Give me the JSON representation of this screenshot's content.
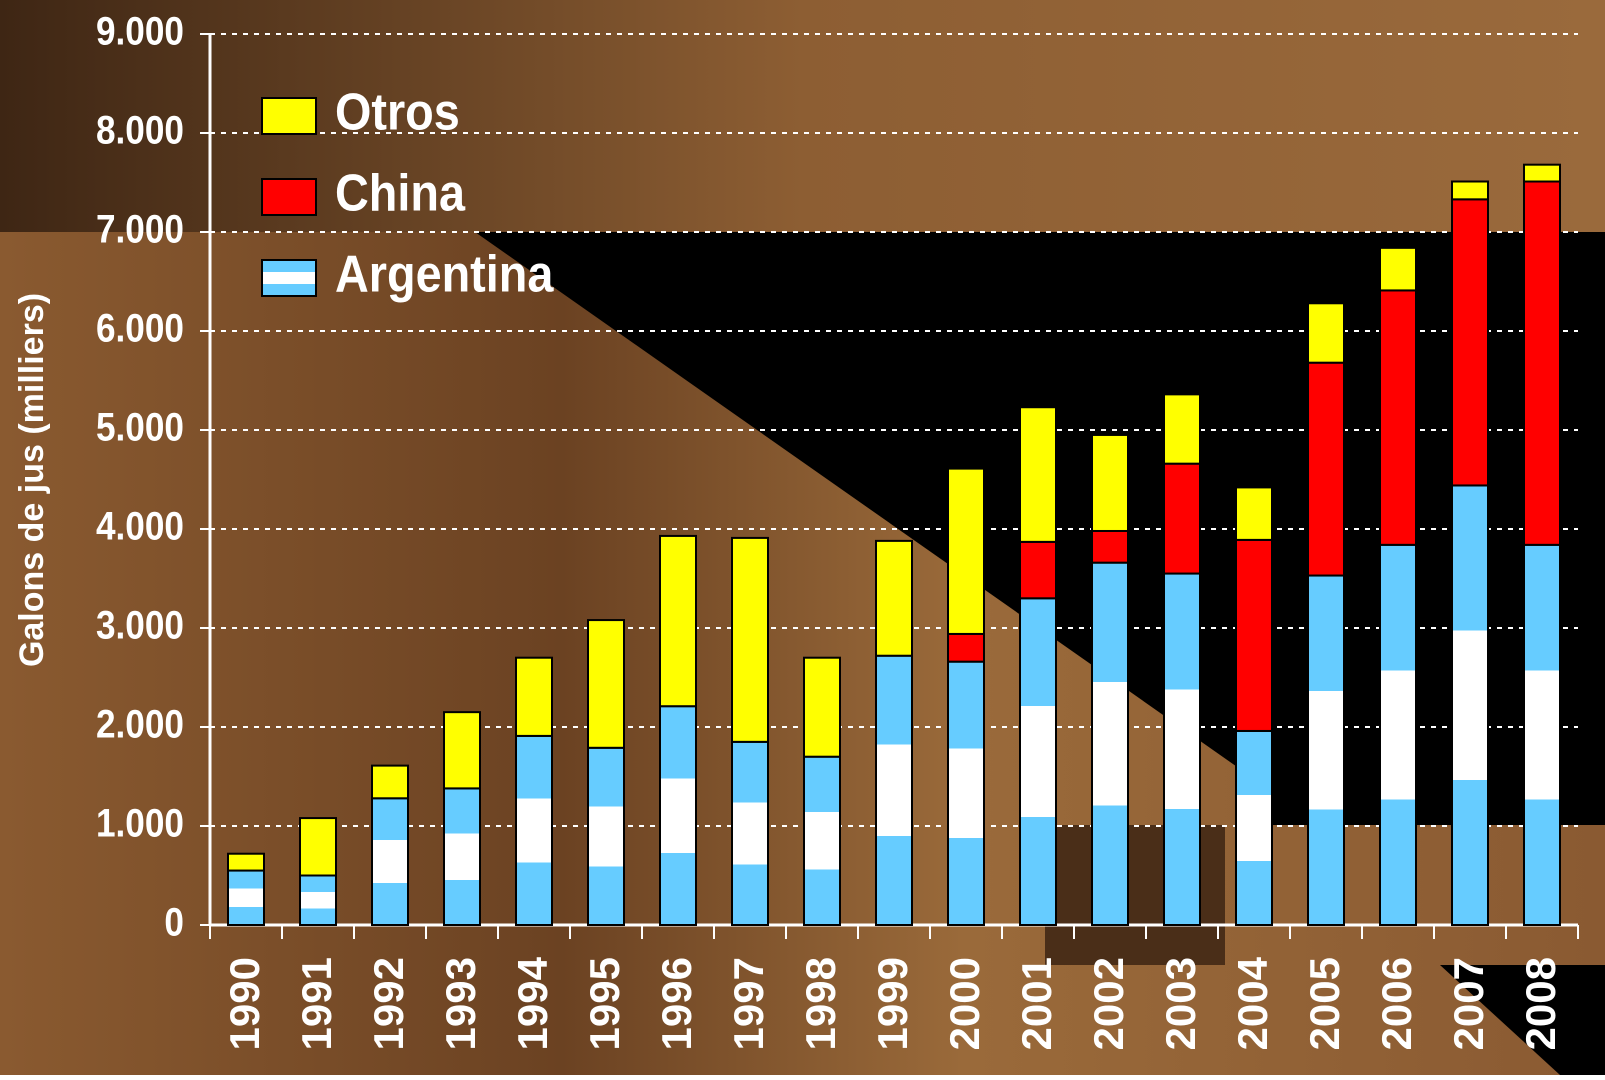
{
  "chart_data": {
    "type": "stacked_bar",
    "y_label": "Galons de jus (milliers)",
    "categories": [
      "1990",
      "1991",
      "1992",
      "1993",
      "1994",
      "1995",
      "1996",
      "1997",
      "1998",
      "1999",
      "2000",
      "2001",
      "2002",
      "2003",
      "2004",
      "2005",
      "2006",
      "2007",
      "2008"
    ],
    "series": [
      {
        "name": "Argentina",
        "color": "#66ccff",
        "values": [
          550,
          500,
          1280,
          1380,
          1910,
          1790,
          2210,
          1850,
          1700,
          2720,
          2660,
          3300,
          3660,
          3550,
          1960,
          3530,
          3840,
          4440,
          3840
        ]
      },
      {
        "name": "China",
        "color": "#ff0000",
        "values": [
          0,
          0,
          0,
          0,
          0,
          0,
          0,
          0,
          0,
          0,
          280,
          570,
          320,
          1110,
          1930,
          2150,
          2570,
          2890,
          3670
        ]
      },
      {
        "name": "Otros",
        "color": "#ffff00",
        "values": [
          170,
          580,
          330,
          770,
          790,
          1290,
          1720,
          2060,
          1000,
          1160,
          1670,
          1360,
          970,
          700,
          530,
          600,
          430,
          180,
          170
        ]
      }
    ],
    "ylim": [
      0,
      9000
    ],
    "yticks": [
      0,
      {
        "value": 1000,
        "label": "1.000"
      },
      {
        "value": 2000,
        "label": "2.000"
      },
      {
        "value": 3000,
        "label": "3.000"
      },
      {
        "value": 4000,
        "label": "4.000"
      },
      {
        "value": 5000,
        "label": "5.000"
      },
      {
        "value": 6000,
        "label": "6.000"
      },
      {
        "value": 7000,
        "label": "7.000"
      },
      {
        "value": 8000,
        "label": "8.000"
      },
      {
        "value": 9000,
        "label": "9.000"
      }
    ],
    "grid": true,
    "legend": "upper left"
  }
}
